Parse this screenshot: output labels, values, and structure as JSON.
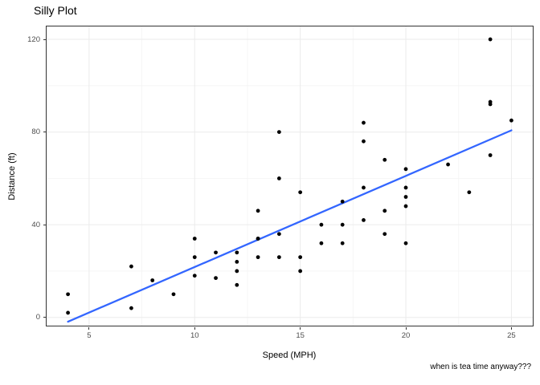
{
  "title": "Silly Plot",
  "caption": "when is tea time anyway???",
  "chart_data": {
    "type": "scatter",
    "title": "Silly Plot",
    "xlabel": "Speed (MPH)",
    "ylabel": "Distance (ft)",
    "xlim": [
      2.95,
      26.05
    ],
    "ylim": [
      -3.9,
      125.9
    ],
    "x_ticks": [
      5,
      10,
      15,
      20,
      25
    ],
    "y_ticks": [
      0,
      40,
      80,
      120
    ],
    "x_minor_ticks": [
      7.5,
      12.5,
      17.5,
      22.5
    ],
    "y_minor_ticks": [
      20,
      60,
      100
    ],
    "grid": true,
    "legend_position": "none",
    "point_color": "#000000",
    "panel_border_color": "#333333",
    "grid_major_color": "#ebebeb",
    "grid_minor_color": "#f4f4f4",
    "points": [
      [
        4,
        2
      ],
      [
        4,
        10
      ],
      [
        7,
        4
      ],
      [
        7,
        22
      ],
      [
        8,
        16
      ],
      [
        9,
        10
      ],
      [
        10,
        18
      ],
      [
        10,
        26
      ],
      [
        10,
        34
      ],
      [
        11,
        17
      ],
      [
        11,
        28
      ],
      [
        12,
        14
      ],
      [
        12,
        20
      ],
      [
        12,
        24
      ],
      [
        12,
        28
      ],
      [
        13,
        26
      ],
      [
        13,
        34
      ],
      [
        13,
        34
      ],
      [
        13,
        46
      ],
      [
        14,
        26
      ],
      [
        14,
        36
      ],
      [
        14,
        60
      ],
      [
        14,
        80
      ],
      [
        15,
        20
      ],
      [
        15,
        26
      ],
      [
        15,
        54
      ],
      [
        16,
        32
      ],
      [
        16,
        40
      ],
      [
        17,
        32
      ],
      [
        17,
        40
      ],
      [
        17,
        50
      ],
      [
        18,
        42
      ],
      [
        18,
        56
      ],
      [
        18,
        76
      ],
      [
        18,
        84
      ],
      [
        19,
        36
      ],
      [
        19,
        46
      ],
      [
        19,
        68
      ],
      [
        20,
        32
      ],
      [
        20,
        48
      ],
      [
        20,
        52
      ],
      [
        20,
        56
      ],
      [
        20,
        64
      ],
      [
        22,
        66
      ],
      [
        23,
        54
      ],
      [
        24,
        70
      ],
      [
        24,
        92
      ],
      [
        24,
        93
      ],
      [
        24,
        120
      ],
      [
        25,
        85
      ]
    ],
    "trend_line": {
      "method": "lm",
      "x": [
        4,
        25
      ],
      "y": [
        -1.85,
        80.73
      ],
      "color": "#3366FF"
    }
  }
}
